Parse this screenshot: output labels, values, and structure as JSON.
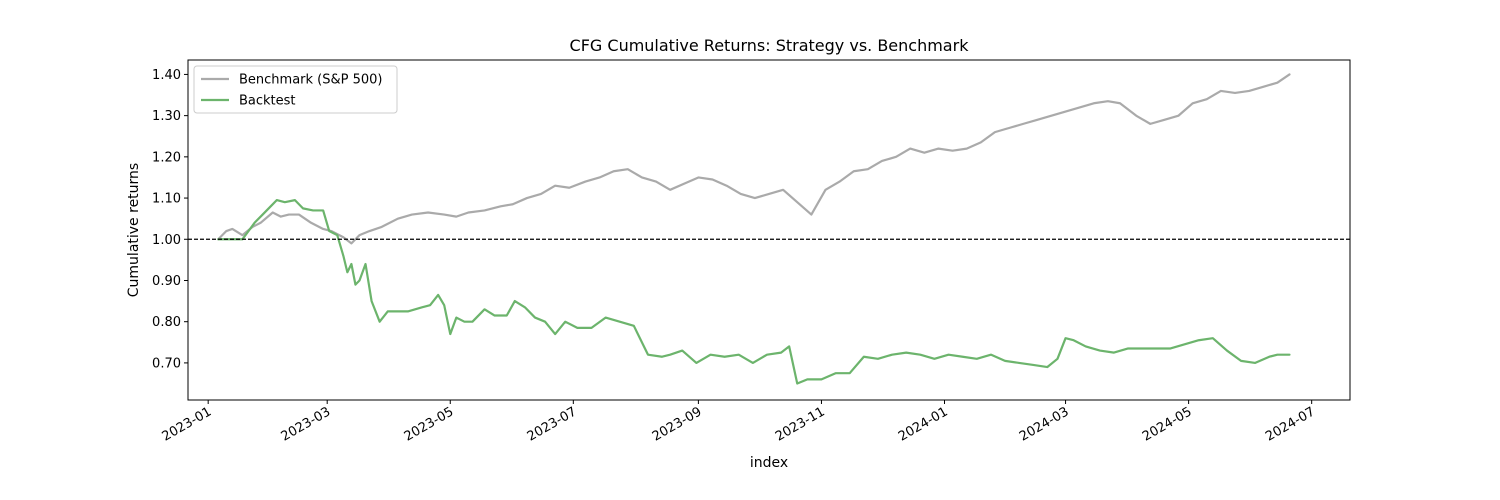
{
  "chart_data": {
    "type": "line",
    "title": "CFG Cumulative Returns: Strategy vs. Benchmark",
    "xlabel": "index",
    "ylabel": "Cumulative returns",
    "x_ticks": [
      "2023-01",
      "2023-03",
      "2023-05",
      "2023-07",
      "2023-09",
      "2023-11",
      "2024-01",
      "2024-03",
      "2024-05",
      "2024-07"
    ],
    "y_ticks": [
      0.7,
      0.8,
      0.9,
      1.0,
      1.1,
      1.2,
      1.3,
      1.4
    ],
    "ylim": [
      0.61,
      1.435
    ],
    "xlim": [
      "2022-12-22",
      "2024-07-20"
    ],
    "grid": false,
    "legend_position": "upper left",
    "reference_line": {
      "y": 1.0,
      "style": "dashed",
      "color": "#000000"
    },
    "series": [
      {
        "name": "Benchmark (S&P 500)",
        "color": "#aaaaaa",
        "x": [
          "2023-01-06",
          "2023-01-10",
          "2023-01-13",
          "2023-01-18",
          "2023-01-23",
          "2023-01-27",
          "2023-02-02",
          "2023-02-06",
          "2023-02-10",
          "2023-02-15",
          "2023-02-21",
          "2023-02-27",
          "2023-03-03",
          "2023-03-09",
          "2023-03-13",
          "2023-03-17",
          "2023-03-22",
          "2023-03-28",
          "2023-04-05",
          "2023-04-12",
          "2023-04-20",
          "2023-04-28",
          "2023-05-04",
          "2023-05-10",
          "2023-05-18",
          "2023-05-26",
          "2023-06-01",
          "2023-06-08",
          "2023-06-15",
          "2023-06-22",
          "2023-06-29",
          "2023-07-07",
          "2023-07-14",
          "2023-07-21",
          "2023-07-28",
          "2023-08-04",
          "2023-08-11",
          "2023-08-18",
          "2023-08-25",
          "2023-09-01",
          "2023-09-08",
          "2023-09-15",
          "2023-09-22",
          "2023-09-29",
          "2023-10-06",
          "2023-10-13",
          "2023-10-20",
          "2023-10-27",
          "2023-11-03",
          "2023-11-10",
          "2023-11-17",
          "2023-11-24",
          "2023-12-01",
          "2023-12-08",
          "2023-12-15",
          "2023-12-22",
          "2023-12-29",
          "2024-01-05",
          "2024-01-12",
          "2024-01-19",
          "2024-01-26",
          "2024-02-02",
          "2024-02-09",
          "2024-02-16",
          "2024-02-23",
          "2024-03-01",
          "2024-03-08",
          "2024-03-15",
          "2024-03-22",
          "2024-03-28",
          "2024-04-05",
          "2024-04-12",
          "2024-04-19",
          "2024-04-26",
          "2024-05-03",
          "2024-05-10",
          "2024-05-17",
          "2024-05-24",
          "2024-05-31",
          "2024-06-07",
          "2024-06-14",
          "2024-06-20"
        ],
        "values": [
          1.0,
          1.02,
          1.025,
          1.01,
          1.03,
          1.04,
          1.065,
          1.055,
          1.06,
          1.06,
          1.04,
          1.025,
          1.02,
          1.005,
          0.99,
          1.01,
          1.02,
          1.03,
          1.05,
          1.06,
          1.065,
          1.06,
          1.055,
          1.065,
          1.07,
          1.08,
          1.085,
          1.1,
          1.11,
          1.13,
          1.125,
          1.14,
          1.15,
          1.165,
          1.17,
          1.15,
          1.14,
          1.12,
          1.135,
          1.15,
          1.145,
          1.13,
          1.11,
          1.1,
          1.11,
          1.12,
          1.09,
          1.06,
          1.12,
          1.14,
          1.165,
          1.17,
          1.19,
          1.2,
          1.22,
          1.21,
          1.22,
          1.215,
          1.22,
          1.235,
          1.26,
          1.27,
          1.28,
          1.29,
          1.3,
          1.31,
          1.32,
          1.33,
          1.335,
          1.33,
          1.3,
          1.28,
          1.29,
          1.3,
          1.33,
          1.34,
          1.36,
          1.355,
          1.36,
          1.37,
          1.38,
          1.4
        ]
      },
      {
        "name": "Backtest",
        "color": "#6cb46c",
        "x": [
          "2023-01-06",
          "2023-01-12",
          "2023-01-18",
          "2023-01-24",
          "2023-01-28",
          "2023-02-01",
          "2023-02-04",
          "2023-02-08",
          "2023-02-13",
          "2023-02-17",
          "2023-02-22",
          "2023-02-27",
          "2023-03-02",
          "2023-03-06",
          "2023-03-09",
          "2023-03-11",
          "2023-03-13",
          "2023-03-15",
          "2023-03-17",
          "2023-03-20",
          "2023-03-23",
          "2023-03-27",
          "2023-03-31",
          "2023-04-04",
          "2023-04-10",
          "2023-04-17",
          "2023-04-21",
          "2023-04-25",
          "2023-04-28",
          "2023-05-01",
          "2023-05-04",
          "2023-05-08",
          "2023-05-12",
          "2023-05-18",
          "2023-05-23",
          "2023-05-29",
          "2023-06-02",
          "2023-06-07",
          "2023-06-12",
          "2023-06-17",
          "2023-06-22",
          "2023-06-27",
          "2023-07-03",
          "2023-07-10",
          "2023-07-17",
          "2023-07-24",
          "2023-07-31",
          "2023-08-07",
          "2023-08-14",
          "2023-08-18",
          "2023-08-24",
          "2023-08-31",
          "2023-09-07",
          "2023-09-14",
          "2023-09-21",
          "2023-09-28",
          "2023-10-05",
          "2023-10-12",
          "2023-10-16",
          "2023-10-20",
          "2023-10-25",
          "2023-11-01",
          "2023-11-08",
          "2023-11-15",
          "2023-11-22",
          "2023-11-29",
          "2023-12-06",
          "2023-12-13",
          "2023-12-20",
          "2023-12-27",
          "2024-01-03",
          "2024-01-10",
          "2024-01-17",
          "2024-01-24",
          "2024-01-31",
          "2024-02-07",
          "2024-02-14",
          "2024-02-21",
          "2024-02-26",
          "2024-03-01",
          "2024-03-05",
          "2024-03-11",
          "2024-03-18",
          "2024-03-25",
          "2024-04-01",
          "2024-04-08",
          "2024-04-15",
          "2024-04-22",
          "2024-04-29",
          "2024-05-06",
          "2024-05-13",
          "2024-05-20",
          "2024-05-27",
          "2024-06-03",
          "2024-06-10",
          "2024-06-14",
          "2024-06-20"
        ],
        "values": [
          1.0,
          1.0,
          1.0,
          1.04,
          1.06,
          1.08,
          1.095,
          1.09,
          1.095,
          1.075,
          1.07,
          1.07,
          1.02,
          1.01,
          0.96,
          0.92,
          0.94,
          0.89,
          0.9,
          0.94,
          0.85,
          0.8,
          0.825,
          0.825,
          0.825,
          0.835,
          0.84,
          0.865,
          0.84,
          0.77,
          0.81,
          0.8,
          0.8,
          0.83,
          0.815,
          0.815,
          0.85,
          0.835,
          0.81,
          0.8,
          0.77,
          0.8,
          0.785,
          0.785,
          0.81,
          0.8,
          0.79,
          0.72,
          0.715,
          0.72,
          0.73,
          0.7,
          0.72,
          0.715,
          0.72,
          0.7,
          0.72,
          0.725,
          0.74,
          0.65,
          0.66,
          0.66,
          0.675,
          0.675,
          0.715,
          0.71,
          0.72,
          0.725,
          0.72,
          0.71,
          0.72,
          0.715,
          0.71,
          0.72,
          0.705,
          0.7,
          0.695,
          0.69,
          0.71,
          0.76,
          0.755,
          0.74,
          0.73,
          0.725,
          0.735,
          0.735,
          0.735,
          0.735,
          0.745,
          0.755,
          0.76,
          0.73,
          0.705,
          0.7,
          0.715,
          0.72,
          0.72
        ]
      }
    ]
  }
}
